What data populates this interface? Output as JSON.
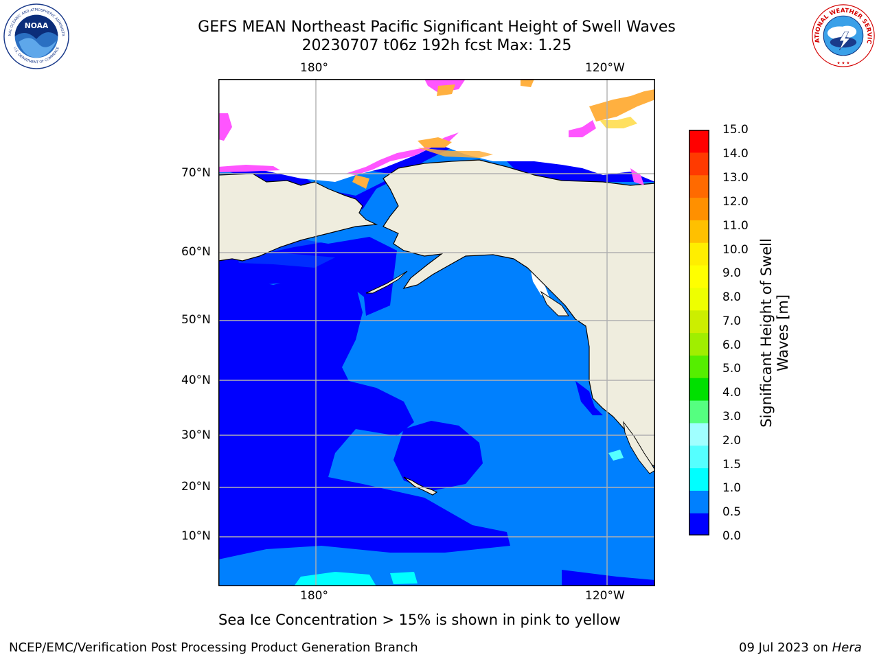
{
  "title": {
    "line1": "GEFS MEAN Northeast Pacific Significant Height of Swell Waves",
    "line2": "20230707 t06z 192h fcst   Max: 1.25"
  },
  "map": {
    "lon_top": [
      "180°",
      "120°W"
    ],
    "lon_bottom": [
      "180°",
      "120°W"
    ],
    "lat_labels": [
      "70°N",
      "60°N",
      "50°N",
      "40°N",
      "30°N",
      "20°N",
      "10°N"
    ],
    "colors": {
      "land": "#efedde",
      "ocean_low": "#0000fe",
      "ocean_mid": "#0080fe",
      "ocean_cyan": "#00ffff",
      "ice_pink": "#ff55ff",
      "ice_orange": "#ffb040",
      "ice_yellow": "#ffe060",
      "grid": "#b0b0b0"
    }
  },
  "colorbar": {
    "title_line1": "Significant Height of Swell",
    "title_line2": "Waves [m]",
    "tick_labels": [
      "15.0",
      "14.0",
      "13.0",
      "12.0",
      "11.0",
      "10.0",
      "9.0",
      "8.0",
      "7.0",
      "6.0",
      "5.0",
      "4.0",
      "3.0",
      "2.0",
      "1.5",
      "1.0",
      "0.5",
      "0.0"
    ],
    "colors": [
      "#0000fe",
      "#0080fe",
      "#00ffff",
      "#55ffff",
      "#a0ffff",
      "#55ff80",
      "#00e000",
      "#55ee00",
      "#a0ee00",
      "#ccee00",
      "#eeff00",
      "#ffff00",
      "#ffee00",
      "#ffc000",
      "#ff9000",
      "#ff6a00",
      "#ff3a00",
      "#ff0000"
    ]
  },
  "logos": {
    "noaa_text": "NOAA",
    "noaa_ring": "NATIONAL OCEANIC AND ATMOSPHERIC ADMINISTRATION",
    "noaa_ring_bottom": "U.S. DEPARTMENT OF COMMERCE",
    "nws_ring": "NATIONAL WEATHER SERVICE"
  },
  "subtitle": "Sea Ice Concentration > 15% is shown in pink to yellow",
  "footer": {
    "left": "NCEP/EMC/Verification Post Processing Product Generation Branch",
    "right_prefix": "09 Jul 2023 on ",
    "right_host": "Hera"
  }
}
